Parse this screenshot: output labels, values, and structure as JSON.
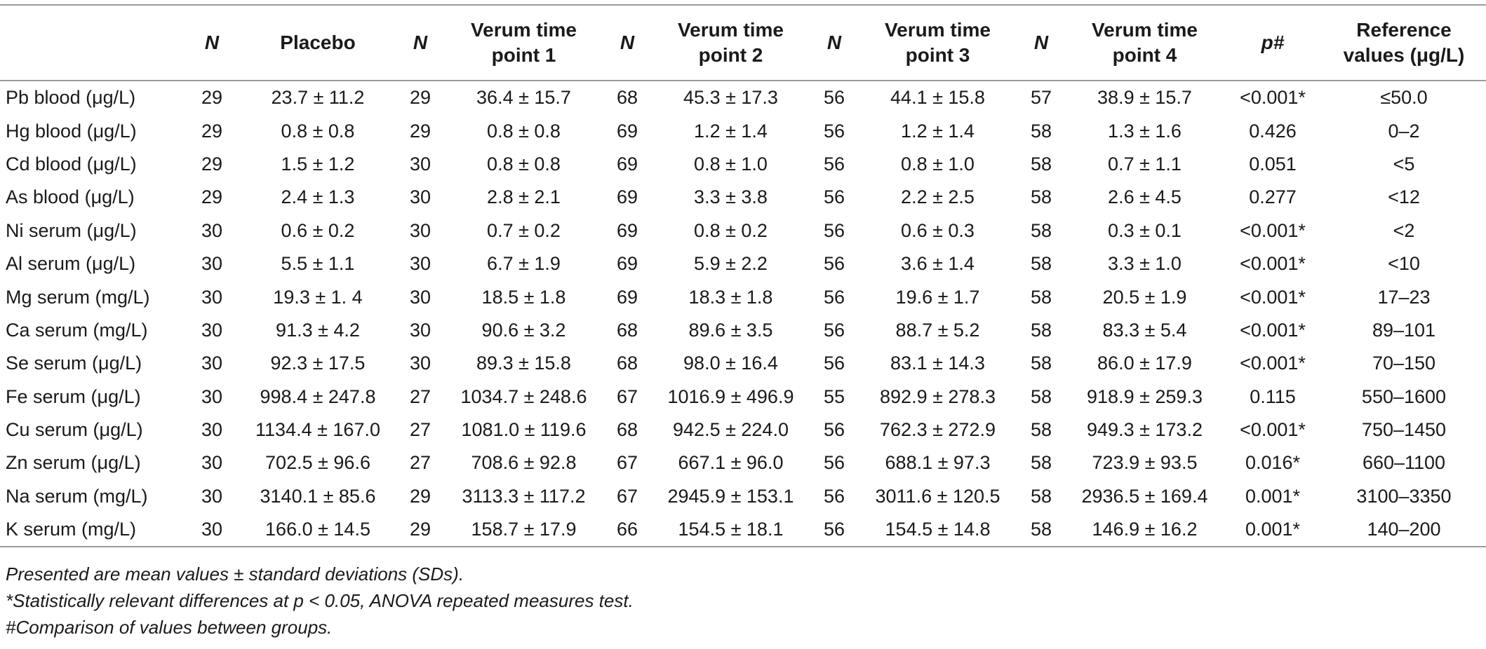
{
  "header": {
    "cells": [
      "",
      "N",
      "Placebo",
      "N",
      "Verum time point 1",
      "N",
      "Verum time point 2",
      "N",
      "Verum time point 3",
      "N",
      "Verum time point 4",
      "p#",
      "Reference values (μg/L)"
    ]
  },
  "rows": [
    [
      "Pb blood (μg/L)",
      "29",
      "23.7 ± 11.2",
      "29",
      "36.4 ± 15.7",
      "68",
      "45.3 ± 17.3",
      "56",
      "44.1 ± 15.8",
      "57",
      "38.9 ± 15.7",
      "<0.001*",
      "≤50.0"
    ],
    [
      "Hg blood (μg/L)",
      "29",
      "0.8 ± 0.8",
      "29",
      "0.8 ± 0.8",
      "69",
      "1.2 ± 1.4",
      "56",
      "1.2 ± 1.4",
      "58",
      "1.3 ± 1.6",
      "0.426",
      "0–2"
    ],
    [
      "Cd blood (μg/L)",
      "29",
      "1.5 ± 1.2",
      "30",
      "0.8 ± 0.8",
      "69",
      "0.8 ± 1.0",
      "56",
      "0.8 ± 1.0",
      "58",
      "0.7 ± 1.1",
      "0.051",
      "<5"
    ],
    [
      "As blood (μg/L)",
      "29",
      "2.4 ± 1.3",
      "30",
      "2.8 ± 2.1",
      "69",
      "3.3 ± 3.8",
      "56",
      "2.2 ± 2.5",
      "58",
      "2.6 ± 4.5",
      "0.277",
      "<12"
    ],
    [
      "Ni serum (μg/L)",
      "30",
      "0.6 ± 0.2",
      "30",
      "0.7 ± 0.2",
      "69",
      "0.8 ± 0.2",
      "56",
      "0.6 ± 0.3",
      "58",
      "0.3 ± 0.1",
      "<0.001*",
      "<2"
    ],
    [
      "Al serum (μg/L)",
      "30",
      "5.5 ± 1.1",
      "30",
      "6.7 ± 1.9",
      "69",
      "5.9 ± 2.2",
      "56",
      "3.6 ± 1.4",
      "58",
      "3.3 ± 1.0",
      "<0.001*",
      "<10"
    ],
    [
      "Mg serum (mg/L)",
      "30",
      "19.3 ± 1. 4",
      "30",
      "18.5 ± 1.8",
      "69",
      "18.3 ± 1.8",
      "56",
      "19.6 ± 1.7",
      "58",
      "20.5 ± 1.9",
      "<0.001*",
      "17–23"
    ],
    [
      "Ca serum (mg/L)",
      "30",
      "91.3 ± 4.2",
      "30",
      "90.6 ± 3.2",
      "68",
      "89.6 ± 3.5",
      "56",
      "88.7 ± 5.2",
      "58",
      "83.3 ± 5.4",
      "<0.001*",
      "89–101"
    ],
    [
      "Se serum (μg/L)",
      "30",
      "92.3 ± 17.5",
      "30",
      "89.3 ± 15.8",
      "68",
      "98.0 ± 16.4",
      "56",
      "83.1 ± 14.3",
      "58",
      "86.0 ± 17.9",
      "<0.001*",
      "70–150"
    ],
    [
      "Fe serum (μg/L)",
      "30",
      "998.4 ± 247.8",
      "27",
      "1034.7 ± 248.6",
      "67",
      "1016.9 ± 496.9",
      "55",
      "892.9 ± 278.3",
      "58",
      "918.9 ± 259.3",
      "0.115",
      "550–1600"
    ],
    [
      "Cu serum (μg/L)",
      "30",
      "1134.4 ± 167.0",
      "27",
      "1081.0 ± 119.6",
      "68",
      "942.5 ± 224.0",
      "56",
      "762.3 ± 272.9",
      "58",
      "949.3 ± 173.2",
      "<0.001*",
      "750–1450"
    ],
    [
      "Zn serum (μg/L)",
      "30",
      "702.5 ± 96.6",
      "27",
      "708.6 ± 92.8",
      "67",
      "667.1 ± 96.0",
      "56",
      "688.1 ± 97.3",
      "58",
      "723.9 ± 93.5",
      "0.016*",
      "660–1100"
    ],
    [
      "Na serum (mg/L)",
      "30",
      "3140.1 ± 85.6",
      "29",
      "3113.3 ± 117.2",
      "67",
      "2945.9 ± 153.1",
      "56",
      "3011.6 ± 120.5",
      "58",
      "2936.5 ± 169.4",
      "0.001*",
      "3100–3350"
    ],
    [
      "K serum (mg/L)",
      "30",
      "166.0 ± 14.5",
      "29",
      "158.7 ± 17.9",
      "66",
      "154.5 ± 18.1",
      "56",
      "154.5 ± 14.8",
      "58",
      "146.9 ± 16.2",
      "0.001*",
      "140–200"
    ]
  ],
  "footnotes": [
    "Presented are mean values ± standard deviations (SDs).",
    "*Statistically relevant differences at p < 0.05, ANOVA repeated measures test.",
    "#Comparison of values between groups."
  ]
}
